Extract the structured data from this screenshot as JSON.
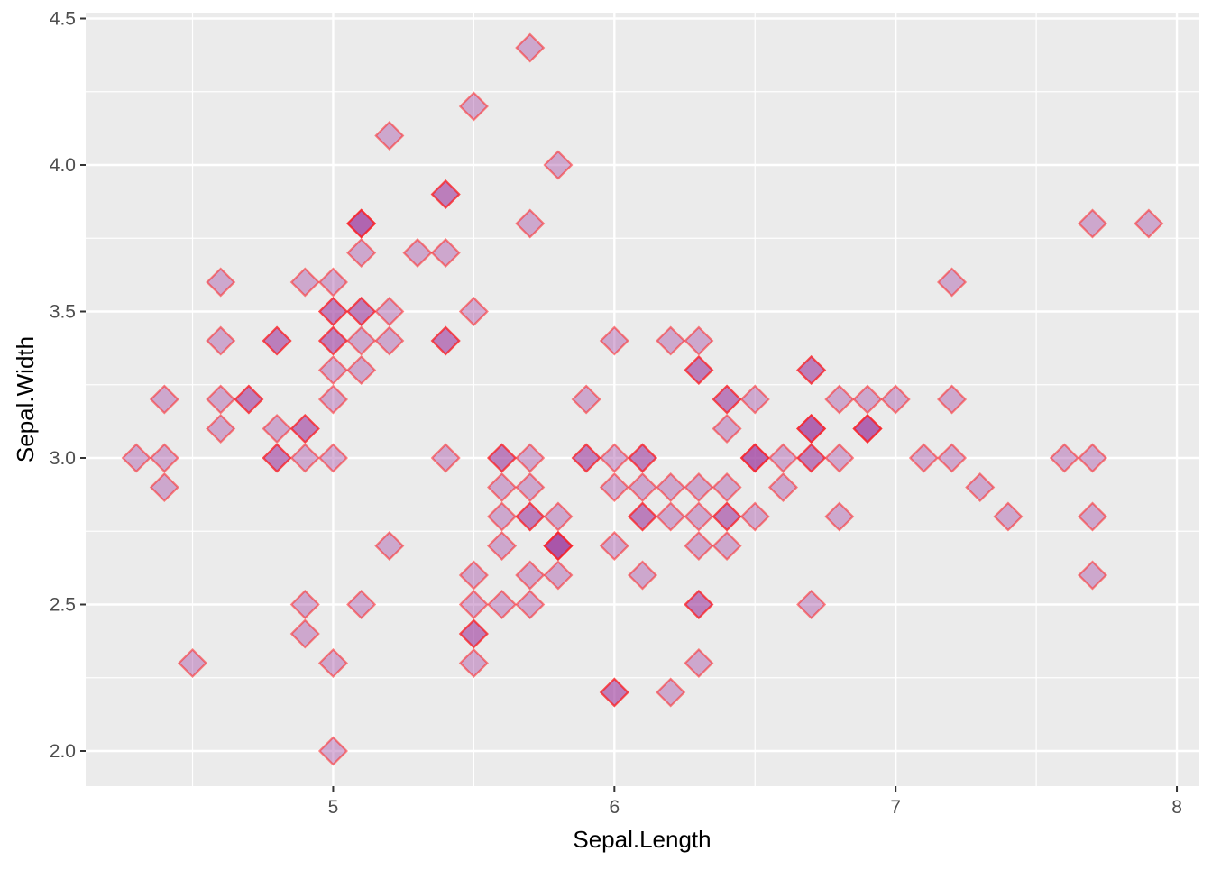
{
  "chart_data": {
    "type": "scatter",
    "xlabel": "Sepal.Length",
    "ylabel": "Sepal.Width",
    "xlim": [
      4.12,
      8.08
    ],
    "ylim": [
      1.88,
      4.52
    ],
    "xticks": [
      5,
      6,
      7,
      8
    ],
    "yticks": [
      "2.0",
      "2.5",
      "3.0",
      "3.5",
      "4.0",
      "4.5"
    ],
    "grid": true,
    "legend": "none",
    "marker": "diamond",
    "colors": {
      "panel": "#ebebeb",
      "grid": "#ffffff",
      "fill": "#a040a0",
      "stroke": "#ff2020"
    },
    "points": [
      [
        5.1,
        3.5
      ],
      [
        4.9,
        3.0
      ],
      [
        4.7,
        3.2
      ],
      [
        4.6,
        3.1
      ],
      [
        5.0,
        3.6
      ],
      [
        5.4,
        3.9
      ],
      [
        4.6,
        3.4
      ],
      [
        5.0,
        3.4
      ],
      [
        4.4,
        2.9
      ],
      [
        4.9,
        3.1
      ],
      [
        5.4,
        3.7
      ],
      [
        4.8,
        3.4
      ],
      [
        4.8,
        3.0
      ],
      [
        4.3,
        3.0
      ],
      [
        5.8,
        4.0
      ],
      [
        5.7,
        4.4
      ],
      [
        5.4,
        3.9
      ],
      [
        5.1,
        3.5
      ],
      [
        5.7,
        3.8
      ],
      [
        5.1,
        3.8
      ],
      [
        5.4,
        3.4
      ],
      [
        5.1,
        3.7
      ],
      [
        4.6,
        3.6
      ],
      [
        5.1,
        3.3
      ],
      [
        4.8,
        3.4
      ],
      [
        5.0,
        3.0
      ],
      [
        5.0,
        3.4
      ],
      [
        5.2,
        3.5
      ],
      [
        5.2,
        3.4
      ],
      [
        4.7,
        3.2
      ],
      [
        4.8,
        3.1
      ],
      [
        5.4,
        3.4
      ],
      [
        5.2,
        4.1
      ],
      [
        5.5,
        4.2
      ],
      [
        4.9,
        3.1
      ],
      [
        5.0,
        3.2
      ],
      [
        5.5,
        3.5
      ],
      [
        4.9,
        3.6
      ],
      [
        4.4,
        3.0
      ],
      [
        5.1,
        3.4
      ],
      [
        5.0,
        3.5
      ],
      [
        4.5,
        2.3
      ],
      [
        4.4,
        3.2
      ],
      [
        5.0,
        3.5
      ],
      [
        5.1,
        3.8
      ],
      [
        4.8,
        3.0
      ],
      [
        5.1,
        3.8
      ],
      [
        4.6,
        3.2
      ],
      [
        5.3,
        3.7
      ],
      [
        5.0,
        3.3
      ],
      [
        7.0,
        3.2
      ],
      [
        6.4,
        3.2
      ],
      [
        6.9,
        3.1
      ],
      [
        5.5,
        2.3
      ],
      [
        6.5,
        2.8
      ],
      [
        5.7,
        2.8
      ],
      [
        6.3,
        3.3
      ],
      [
        4.9,
        2.4
      ],
      [
        6.6,
        2.9
      ],
      [
        5.2,
        2.7
      ],
      [
        5.0,
        2.0
      ],
      [
        5.9,
        3.0
      ],
      [
        6.0,
        2.2
      ],
      [
        6.1,
        2.9
      ],
      [
        5.6,
        2.9
      ],
      [
        6.7,
        3.1
      ],
      [
        5.6,
        3.0
      ],
      [
        5.8,
        2.7
      ],
      [
        6.2,
        2.2
      ],
      [
        5.6,
        2.5
      ],
      [
        5.9,
        3.2
      ],
      [
        6.1,
        2.8
      ],
      [
        6.3,
        2.5
      ],
      [
        6.1,
        2.8
      ],
      [
        6.4,
        2.9
      ],
      [
        6.6,
        3.0
      ],
      [
        6.8,
        2.8
      ],
      [
        6.7,
        3.0
      ],
      [
        6.0,
        2.9
      ],
      [
        5.7,
        2.6
      ],
      [
        5.5,
        2.4
      ],
      [
        5.5,
        2.4
      ],
      [
        5.8,
        2.7
      ],
      [
        6.0,
        2.7
      ],
      [
        5.4,
        3.0
      ],
      [
        6.0,
        3.4
      ],
      [
        6.7,
        3.1
      ],
      [
        6.3,
        2.3
      ],
      [
        5.6,
        3.0
      ],
      [
        5.5,
        2.5
      ],
      [
        5.5,
        2.6
      ],
      [
        6.1,
        3.0
      ],
      [
        5.8,
        2.6
      ],
      [
        5.0,
        2.3
      ],
      [
        5.6,
        2.7
      ],
      [
        5.7,
        3.0
      ],
      [
        5.7,
        2.9
      ],
      [
        6.2,
        2.9
      ],
      [
        5.1,
        2.5
      ],
      [
        5.7,
        2.8
      ],
      [
        6.3,
        3.3
      ],
      [
        5.8,
        2.7
      ],
      [
        7.1,
        3.0
      ],
      [
        6.3,
        2.9
      ],
      [
        6.5,
        3.0
      ],
      [
        7.6,
        3.0
      ],
      [
        4.9,
        2.5
      ],
      [
        7.3,
        2.9
      ],
      [
        6.7,
        2.5
      ],
      [
        7.2,
        3.6
      ],
      [
        6.5,
        3.2
      ],
      [
        6.4,
        2.7
      ],
      [
        6.8,
        3.0
      ],
      [
        5.7,
        2.5
      ],
      [
        5.8,
        2.8
      ],
      [
        6.4,
        3.2
      ],
      [
        6.5,
        3.0
      ],
      [
        7.7,
        3.8
      ],
      [
        7.7,
        2.6
      ],
      [
        6.0,
        2.2
      ],
      [
        6.9,
        3.2
      ],
      [
        5.6,
        2.8
      ],
      [
        7.7,
        2.8
      ],
      [
        6.3,
        2.7
      ],
      [
        6.7,
        3.3
      ],
      [
        7.2,
        3.2
      ],
      [
        6.2,
        2.8
      ],
      [
        6.1,
        3.0
      ],
      [
        6.4,
        2.8
      ],
      [
        7.2,
        3.0
      ],
      [
        7.4,
        2.8
      ],
      [
        7.9,
        3.8
      ],
      [
        6.4,
        2.8
      ],
      [
        6.3,
        2.8
      ],
      [
        6.1,
        2.6
      ],
      [
        7.7,
        3.0
      ],
      [
        6.3,
        3.4
      ],
      [
        6.4,
        3.1
      ],
      [
        6.0,
        3.0
      ],
      [
        6.9,
        3.1
      ],
      [
        6.7,
        3.1
      ],
      [
        6.9,
        3.1
      ],
      [
        5.8,
        2.7
      ],
      [
        6.8,
        3.2
      ],
      [
        6.7,
        3.3
      ],
      [
        6.7,
        3.0
      ],
      [
        6.3,
        2.5
      ],
      [
        6.5,
        3.0
      ],
      [
        6.2,
        3.4
      ],
      [
        5.9,
        3.0
      ]
    ]
  }
}
